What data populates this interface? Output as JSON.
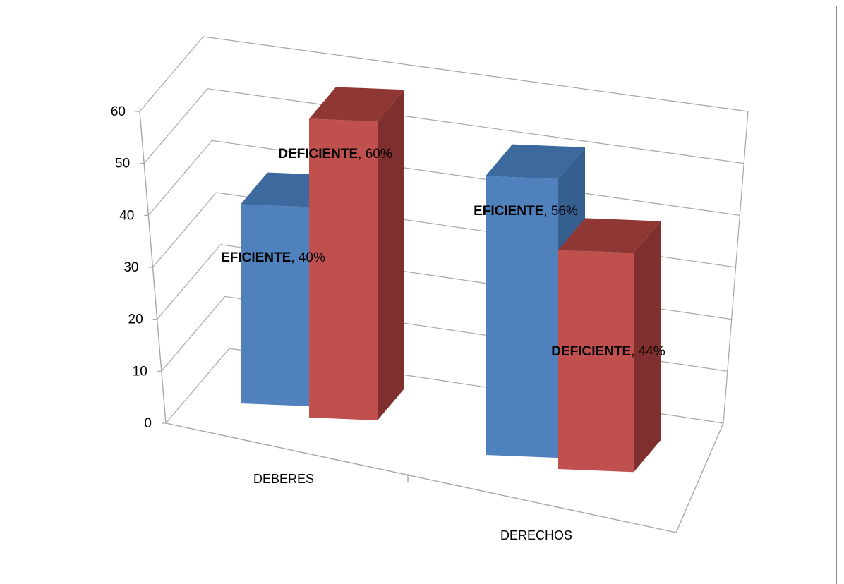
{
  "chart_data": {
    "type": "bar",
    "subtype": "3d-clustered-column",
    "categories": [
      "DEBERES",
      "DERECHOS"
    ],
    "series": [
      {
        "name": "EFICIENTE",
        "values": [
          40,
          56
        ],
        "labels": [
          "40%",
          "56%"
        ],
        "color": "#4f81bd"
      },
      {
        "name": "DEFICIENTE",
        "values": [
          60,
          44
        ],
        "labels": [
          "60%",
          "44%"
        ],
        "color": "#c0504d"
      }
    ],
    "y_ticks": [
      "0",
      "10",
      "20",
      "30",
      "40",
      "50",
      "60"
    ],
    "ylim": [
      0,
      60
    ],
    "grid": true,
    "legend": "none",
    "title": "",
    "xlabel": "",
    "ylabel": ""
  },
  "colors": {
    "grid": "#a6a6a6",
    "eficiente_front": "#4f81bd",
    "eficiente_side": "#355f8f",
    "eficiente_top": "#3c6a9e",
    "deficiente_front": "#c0504d",
    "deficiente_side": "#7f2f2d",
    "deficiente_top": "#8e3735"
  }
}
